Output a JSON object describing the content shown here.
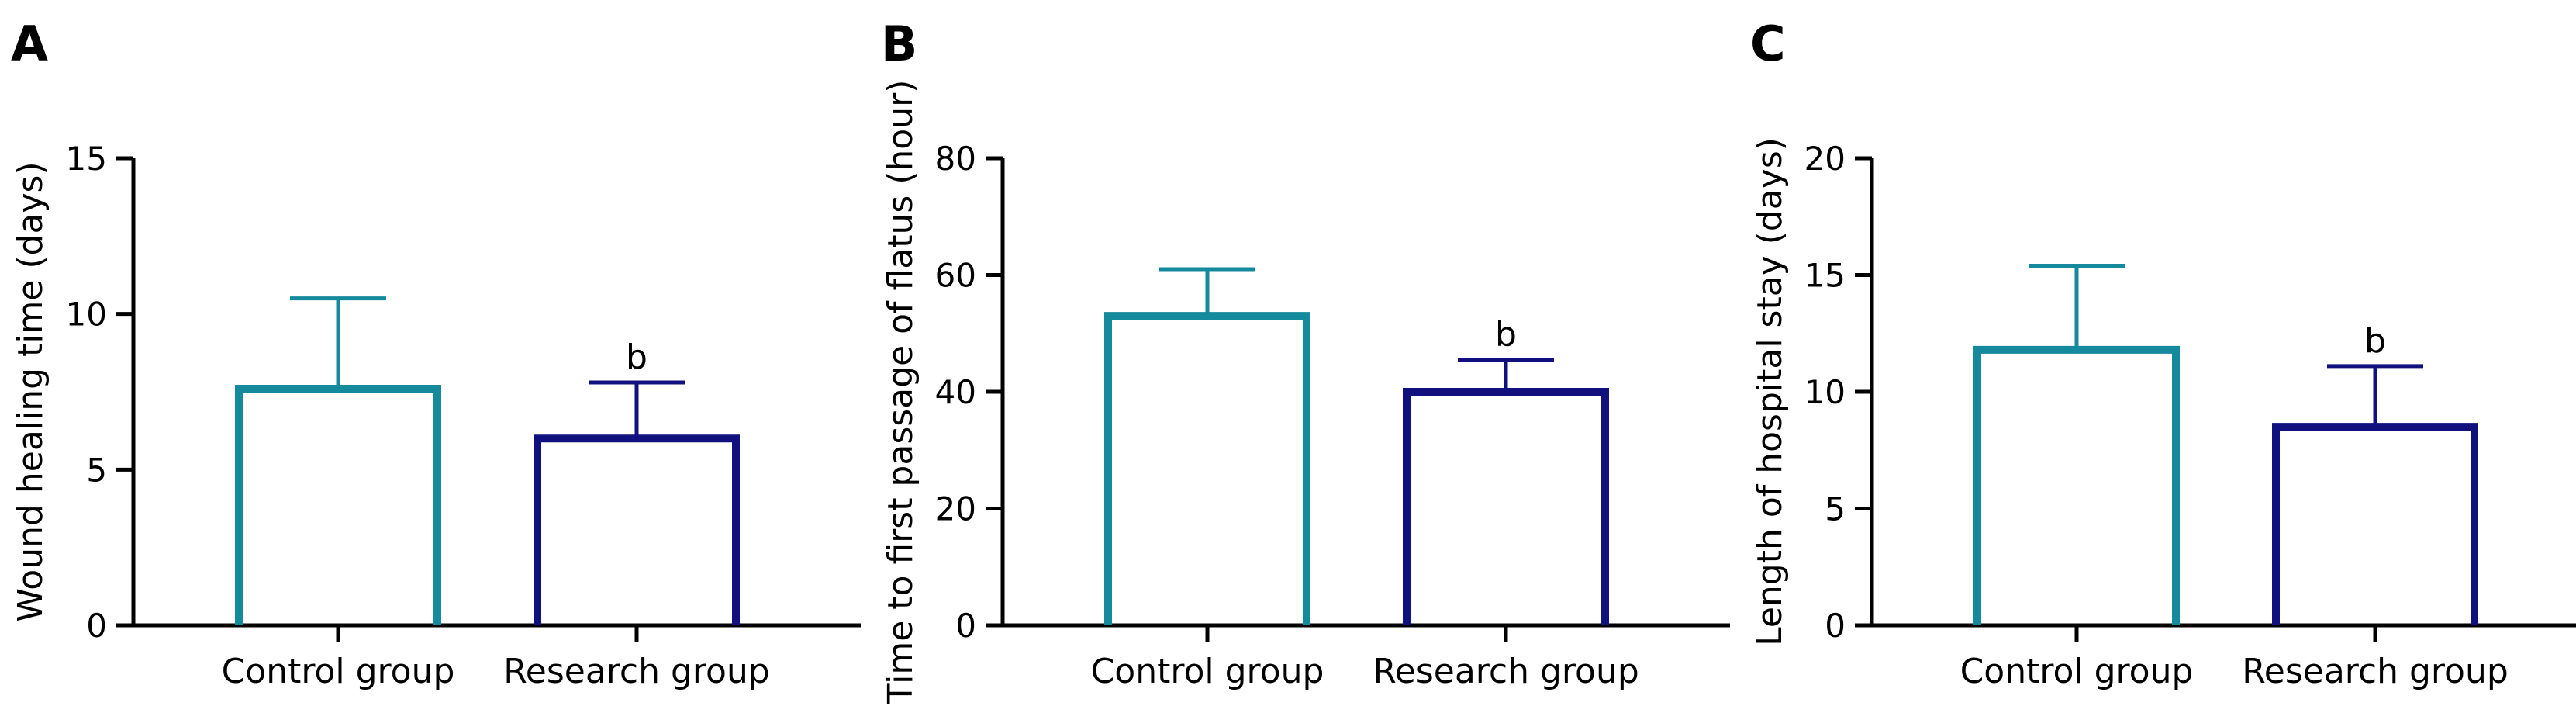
{
  "chart_data": [
    {
      "type": "bar",
      "panel": "A",
      "categories": [
        "Control group",
        "Research group"
      ],
      "values": [
        7.6,
        6.0
      ],
      "errors": [
        2.9,
        1.8
      ],
      "significance": [
        "",
        "b"
      ],
      "ylabel": "Wound healing time (days)",
      "ylim": [
        0,
        15
      ],
      "yticks": [
        0,
        5,
        10,
        15
      ],
      "colors": [
        "#158a9c",
        "#10107f"
      ],
      "bar_fill": "none",
      "grid": false
    },
    {
      "type": "bar",
      "panel": "B",
      "categories": [
        "Control group",
        "Research group"
      ],
      "values": [
        53,
        40
      ],
      "errors": [
        8,
        5.5
      ],
      "significance": [
        "",
        "b"
      ],
      "ylabel": "Time to first passage of flatus (hour)",
      "ylim": [
        0,
        80
      ],
      "yticks": [
        0,
        20,
        40,
        60,
        80
      ],
      "colors": [
        "#158a9c",
        "#10107f"
      ],
      "bar_fill": "none",
      "grid": false
    },
    {
      "type": "bar",
      "panel": "C",
      "categories": [
        "Control group",
        "Research group"
      ],
      "values": [
        11.8,
        8.5
      ],
      "errors": [
        3.6,
        2.6
      ],
      "significance": [
        "",
        "b"
      ],
      "ylabel": "Length of hospital stay (days)",
      "ylim": [
        0,
        20
      ],
      "yticks": [
        0,
        5,
        10,
        15,
        20
      ],
      "colors": [
        "#158a9c",
        "#10107f"
      ],
      "bar_fill": "none",
      "grid": false
    }
  ]
}
